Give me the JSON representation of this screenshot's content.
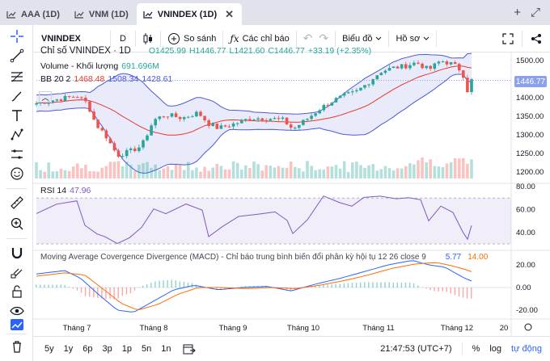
{
  "tabs": [
    {
      "label": "AAA (1D)",
      "active": false
    },
    {
      "label": "VNM (1D)",
      "active": false
    },
    {
      "label": "VNINDEX (1D)",
      "active": true
    }
  ],
  "tabbar_icons": [
    "plus-icon",
    "expand-icon"
  ],
  "tabbar_plus": "+",
  "tabbar_expand": "⤢",
  "toolbar": {
    "symbol": "VNINDEX",
    "interval": "D",
    "compare_label": "So sánh",
    "indicators_label": "Các chỉ báo",
    "undo": "↶",
    "redo": "↷",
    "chart_type_label": "Biểu đồ",
    "profile_label": "Hồ sơ"
  },
  "legend": {
    "title": "Chỉ số VNINDEX · 1D",
    "open": "O1425.99",
    "high": "H1446.77",
    "low": "L1421.60",
    "close": "C1446.77",
    "change": "+33.19 (+2.35%)",
    "volume_label": "Volume - Khối lượng",
    "volume_value": "691.696M",
    "bb_label": "BB 20 2",
    "bb_mid": "1468.48",
    "bb_upper": "1508.34",
    "bb_lower": "1428.61",
    "rsi_label": "RSI 14",
    "rsi_value": "47.96",
    "macd_label": "Moving Average Covergence Divergence (MACD) - Chỉ báo trung bình biến đổi phân kỳ hội tụ 12 26 close 9",
    "macd_value": "5.77",
    "signal_value": "14.00"
  },
  "price_axis": [
    "1500.00",
    "1450.00",
    "1400.00",
    "1350.00",
    "1300.00",
    "1250.00",
    "1200.00"
  ],
  "last_price": "1446.77",
  "rsi_axis": [
    "80.00",
    "60.00",
    "40.00"
  ],
  "macd_axis": [
    "20.00",
    "0.00",
    "-20.00"
  ],
  "time_axis": [
    "Tháng 7",
    "Tháng 8",
    "Tháng 9",
    "Tháng 10",
    "Tháng 11",
    "Tháng 12",
    "20"
  ],
  "bottombar": {
    "ranges": [
      "5y",
      "1y",
      "6p",
      "3p",
      "1p",
      "5n",
      "1n"
    ],
    "time": "21:47:53 (UTC+7)",
    "percent": "%",
    "log": "log",
    "auto": "tự động"
  },
  "colors": {
    "up": "#26a69a",
    "down": "#ef5350",
    "bb": "#4c59d8",
    "bb_mid": "#e6392c",
    "rsi": "#7e57c2",
    "macd": "#2962ff",
    "signal": "#ff6d00"
  }
}
